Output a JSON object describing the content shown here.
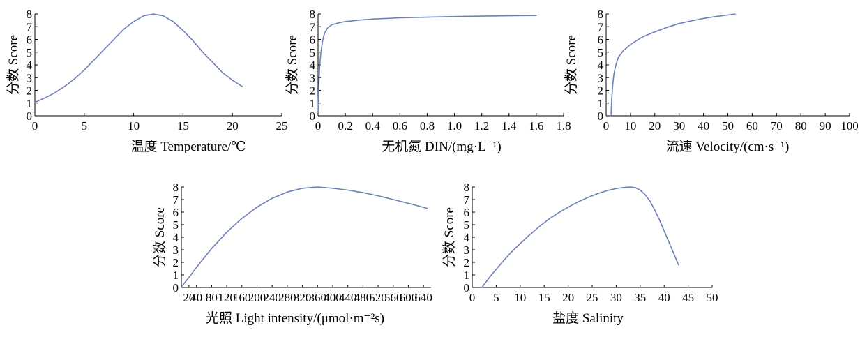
{
  "colors": {
    "series": "#6b80b5",
    "axis": "#000000",
    "background": "#ffffff"
  },
  "chart_data": [
    {
      "type": "line",
      "xlabel": "温度 Temperature/℃",
      "ylabel": "分数 Score",
      "xlim": [
        0,
        25
      ],
      "ylim": [
        0,
        8
      ],
      "xticks": [
        0,
        5,
        10,
        15,
        20,
        25
      ],
      "xtick_labels": [
        "0",
        "5",
        "10",
        "15",
        "20",
        "25"
      ],
      "yticks": [
        0,
        1,
        2,
        3,
        4,
        5,
        6,
        7,
        8
      ],
      "ytick_labels": [
        "0",
        "1",
        "2",
        "3",
        "4",
        "5",
        "6",
        "7",
        "8"
      ],
      "series": [
        {
          "x": [
            0,
            1,
            2,
            3,
            4,
            5,
            6,
            7,
            8,
            9,
            10,
            11,
            12,
            13,
            14,
            15,
            16,
            17,
            18,
            19,
            20,
            21
          ],
          "y": [
            1.05,
            1.4,
            1.8,
            2.3,
            2.9,
            3.6,
            4.4,
            5.2,
            6.0,
            6.8,
            7.4,
            7.85,
            8.0,
            7.85,
            7.4,
            6.7,
            5.9,
            5.0,
            4.2,
            3.4,
            2.8,
            2.3
          ]
        }
      ]
    },
    {
      "type": "line",
      "xlabel": "无机氮 DIN/(mg·L⁻¹)",
      "ylabel": "分数 Score",
      "xlim": [
        0,
        1.8
      ],
      "ylim": [
        0,
        8
      ],
      "xticks": [
        0,
        0.2,
        0.4,
        0.6,
        0.8,
        1.0,
        1.2,
        1.4,
        1.6,
        1.8
      ],
      "xtick_labels": [
        "0",
        "0.2",
        "0.4",
        "0.6",
        "0.8",
        "1.0",
        "1.2",
        "1.4",
        "1.6",
        "1.8"
      ],
      "yticks": [
        0,
        1,
        2,
        3,
        4,
        5,
        6,
        7,
        8
      ],
      "ytick_labels": [
        "0",
        "1",
        "2",
        "3",
        "4",
        "5",
        "6",
        "7",
        "8"
      ],
      "series": [
        {
          "x": [
            0.0,
            0.003,
            0.006,
            0.01,
            0.015,
            0.02,
            0.03,
            0.04,
            0.05,
            0.07,
            0.1,
            0.15,
            0.2,
            0.3,
            0.4,
            0.6,
            0.8,
            1.0,
            1.2,
            1.4,
            1.6
          ],
          "y": [
            0.3,
            1.5,
            2.5,
            3.5,
            4.3,
            4.9,
            5.7,
            6.2,
            6.55,
            6.9,
            7.15,
            7.3,
            7.4,
            7.52,
            7.6,
            7.7,
            7.75,
            7.8,
            7.83,
            7.86,
            7.88
          ]
        }
      ]
    },
    {
      "type": "line",
      "xlabel": "流速 Velocity/(cm·s⁻¹)",
      "ylabel": "分数 Score",
      "xlim": [
        0,
        100
      ],
      "ylim": [
        0,
        8
      ],
      "xticks": [
        0,
        10,
        20,
        30,
        40,
        50,
        60,
        70,
        80,
        90,
        100
      ],
      "xtick_labels": [
        "0",
        "10",
        "20",
        "30",
        "40",
        "50",
        "60",
        "70",
        "80",
        "90",
        "100"
      ],
      "yticks": [
        0,
        1,
        2,
        3,
        4,
        5,
        6,
        7,
        8
      ],
      "ytick_labels": [
        "0",
        "1",
        "2",
        "3",
        "4",
        "5",
        "6",
        "7",
        "8"
      ],
      "series": [
        {
          "x": [
            2,
            2.3,
            2.7,
            3.2,
            4,
            5,
            7,
            10,
            15,
            20,
            25,
            30,
            35,
            40,
            45,
            50,
            53
          ],
          "y": [
            0,
            1.3,
            2.4,
            3.3,
            4.0,
            4.6,
            5.1,
            5.6,
            6.2,
            6.6,
            6.95,
            7.25,
            7.45,
            7.65,
            7.8,
            7.92,
            8.0
          ]
        }
      ]
    },
    {
      "type": "line",
      "xlabel": "光照 Light intensity/(μmol·m⁻²s)",
      "ylabel": "分数 Score",
      "xlim": [
        0,
        660
      ],
      "ylim": [
        0,
        8
      ],
      "xticks": [
        20,
        40,
        80,
        120,
        160,
        200,
        240,
        280,
        320,
        360,
        400,
        440,
        480,
        520,
        560,
        600,
        640
      ],
      "xtick_labels": [
        "20",
        "40",
        "80",
        "120",
        "160",
        "200",
        "240",
        "280",
        "320",
        "360",
        "400",
        "440",
        "480",
        "520",
        "560",
        "600",
        "640"
      ],
      "yticks": [
        0,
        1,
        2,
        3,
        4,
        5,
        6,
        7,
        8
      ],
      "ytick_labels": [
        "0",
        "1",
        "2",
        "3",
        "4",
        "5",
        "6",
        "7",
        "8"
      ],
      "series": [
        {
          "x": [
            0,
            20,
            40,
            80,
            120,
            160,
            200,
            240,
            280,
            320,
            360,
            400,
            440,
            480,
            520,
            560,
            600,
            650
          ],
          "y": [
            0.05,
            0.8,
            1.6,
            3.1,
            4.4,
            5.5,
            6.4,
            7.1,
            7.6,
            7.9,
            8.0,
            7.9,
            7.75,
            7.55,
            7.3,
            7.0,
            6.7,
            6.3
          ]
        }
      ]
    },
    {
      "type": "line",
      "xlabel": "盐度 Salinity",
      "ylabel": "分数 Score",
      "xlim": [
        0,
        50
      ],
      "ylim": [
        0,
        8
      ],
      "xticks": [
        0,
        5,
        10,
        15,
        20,
        25,
        30,
        35,
        40,
        45,
        50
      ],
      "xtick_labels": [
        "0",
        "5",
        "10",
        "15",
        "20",
        "25",
        "30",
        "35",
        "40",
        "45",
        "50"
      ],
      "yticks": [
        0,
        1,
        2,
        3,
        4,
        5,
        6,
        7,
        8
      ],
      "ytick_labels": [
        "0",
        "1",
        "2",
        "3",
        "4",
        "5",
        "6",
        "7",
        "8"
      ],
      "series": [
        {
          "x": [
            2,
            4,
            6,
            8,
            10,
            12,
            14,
            16,
            18,
            20,
            22,
            24,
            26,
            28,
            30,
            32,
            33,
            34,
            35,
            36,
            37,
            38,
            39,
            40,
            41,
            42,
            43
          ],
          "y": [
            0,
            1.0,
            1.9,
            2.75,
            3.5,
            4.2,
            4.85,
            5.45,
            5.95,
            6.4,
            6.8,
            7.15,
            7.45,
            7.7,
            7.88,
            7.98,
            8.0,
            7.95,
            7.75,
            7.4,
            6.9,
            6.2,
            5.4,
            4.5,
            3.6,
            2.7,
            1.8
          ]
        }
      ]
    }
  ]
}
